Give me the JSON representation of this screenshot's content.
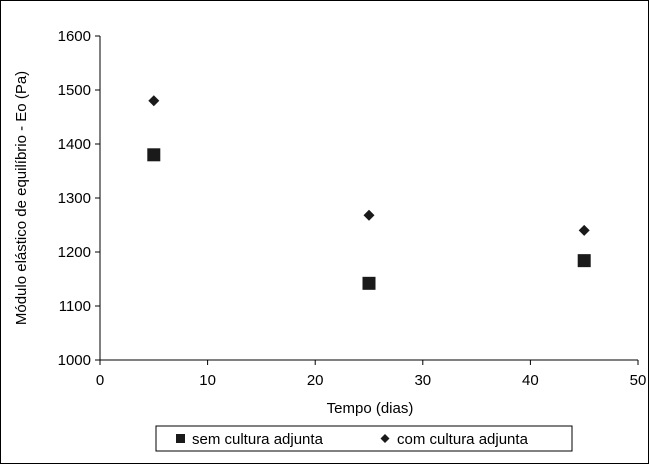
{
  "chart_data": {
    "type": "scatter",
    "title": "",
    "xlabel": "Tempo (dias)",
    "ylabel": "Módulo elástico de equilíbrio - Eo (Pa)",
    "xlim": [
      0,
      50
    ],
    "ylim": [
      1000,
      1600
    ],
    "x_ticks": [
      "0",
      "10",
      "20",
      "30",
      "40",
      "50"
    ],
    "y_ticks": [
      "1000",
      "1100",
      "1200",
      "1300",
      "1400",
      "1500",
      "1600"
    ],
    "grid": false,
    "legend_position": "bottom",
    "series": [
      {
        "name": "sem cultura adjunta",
        "marker": "square",
        "color": "#1a1a1a",
        "points": [
          {
            "x": 5,
            "y": 1380
          },
          {
            "x": 25,
            "y": 1142
          },
          {
            "x": 45,
            "y": 1184
          }
        ]
      },
      {
        "name": "com cultura adjunta",
        "marker": "diamond",
        "color": "#1a1a1a",
        "points": [
          {
            "x": 5,
            "y": 1480
          },
          {
            "x": 25,
            "y": 1268
          },
          {
            "x": 45,
            "y": 1240
          }
        ]
      }
    ]
  }
}
